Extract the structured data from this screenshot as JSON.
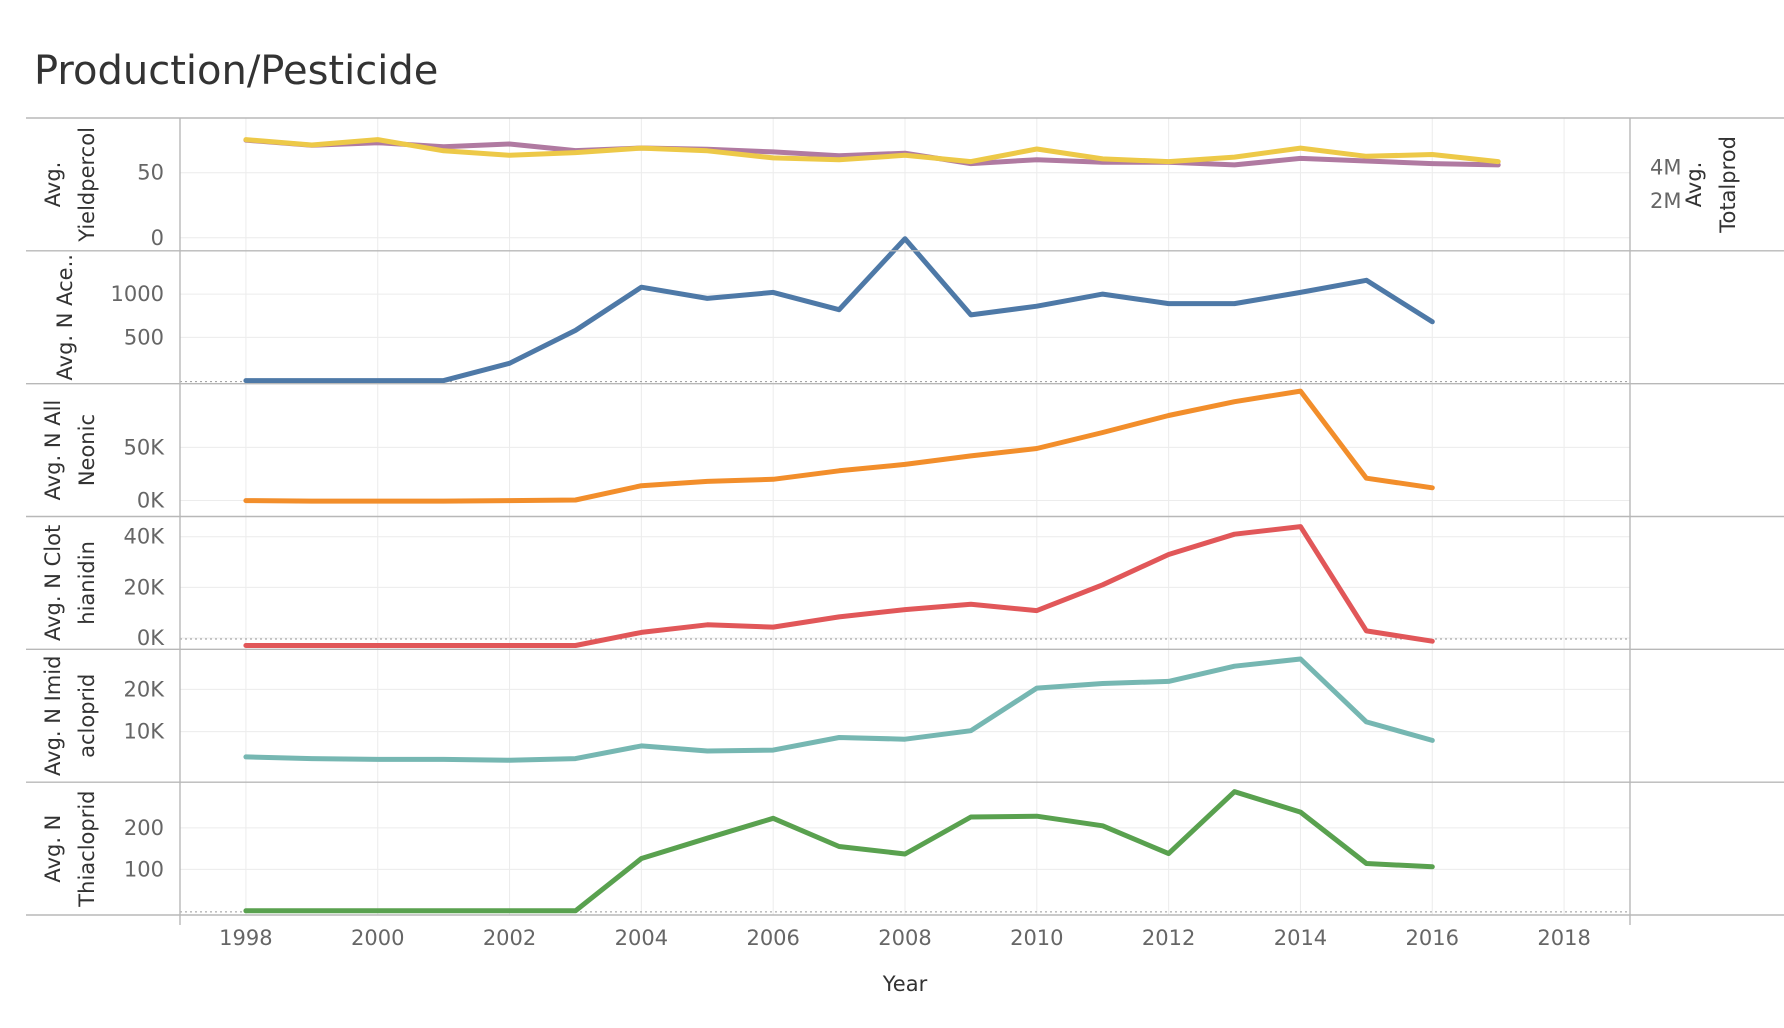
{
  "title": "Production/Pesticide",
  "chart_data": {
    "type": "line",
    "xlabel": "Year",
    "xlim": [
      1997,
      2019
    ],
    "x_ticks": [
      "1998",
      "2000",
      "2002",
      "2004",
      "2006",
      "2008",
      "2010",
      "2012",
      "2014",
      "2016",
      "2018"
    ],
    "panels": [
      {
        "ylabel": [
          "Avg.",
          "Yieldpercol"
        ],
        "ylim": [
          -10,
          92
        ],
        "y_ticks": [
          {
            "v": 0,
            "label": "0"
          },
          {
            "v": 50,
            "label": "50"
          }
        ],
        "right_ylabel": [
          "Avg.",
          "Totalprod"
        ],
        "right_ylim": [
          -1000000,
          6980000
        ],
        "right_ticks": [
          {
            "v": 2000000,
            "label": "2M"
          },
          {
            "v": 4000000,
            "label": "4M"
          }
        ],
        "series": [
          {
            "name": "Avg. Yieldpercol",
            "color": "#b07aa1",
            "axis": "left",
            "x": [
              1998,
              1999,
              2000,
              2001,
              2002,
              2003,
              2004,
              2005,
              2006,
              2007,
              2008,
              2009,
              2010,
              2011,
              2012,
              2013,
              2014,
              2015,
              2016,
              2017
            ],
            "y": [
              75,
              71,
              73,
              70,
              72,
              67,
              69,
              68,
              66,
              63,
              65,
              57,
              60,
              58,
              58,
              56,
              61,
              59,
              57,
              56
            ]
          },
          {
            "name": "Avg. Totalprod",
            "color": "#edc948",
            "axis": "right",
            "x": [
              1998,
              1999,
              2000,
              2001,
              2002,
              2003,
              2004,
              2005,
              2006,
              2007,
              2008,
              2009,
              2010,
              2011,
              2012,
              2013,
              2014,
              2015,
              2016,
              2017
            ],
            "y": [
              5680000,
              5360000,
              5680000,
              5010000,
              4740000,
              4900000,
              5170000,
              5010000,
              4580000,
              4470000,
              4740000,
              4360000,
              5120000,
              4520000,
              4360000,
              4630000,
              5170000,
              4680000,
              4790000,
              4360000
            ]
          }
        ]
      },
      {
        "ylabel": [
          "Avg. N Ace.."
        ],
        "ylim": [
          -35,
          1500
        ],
        "y_ticks": [
          {
            "v": 500,
            "label": "500"
          },
          {
            "v": 1000,
            "label": "1000"
          }
        ],
        "zero_line": true,
        "series": [
          {
            "name": "Avg. N Acetamiprid",
            "color": "#4e79a7",
            "axis": "left",
            "x": [
              1998,
              1999,
              2000,
              2001,
              2002,
              2003,
              2004,
              2005,
              2006,
              2007,
              2008,
              2009,
              2010,
              2011,
              2012,
              2013,
              2014,
              2015,
              2016
            ],
            "y": [
              0,
              0,
              0,
              0,
              200,
              580,
              1080,
              950,
              1020,
              820,
              1640,
              760,
              860,
              1000,
              890,
              890,
              1020,
              1160,
              680
            ]
          }
        ]
      },
      {
        "ylabel": [
          "Avg. N All",
          "Neonic"
        ],
        "ylim": [
          -15000,
          110000
        ],
        "y_ticks": [
          {
            "v": 0,
            "label": "0K"
          },
          {
            "v": 50000,
            "label": "50K"
          }
        ],
        "series": [
          {
            "name": "Avg. N All Neonic",
            "color": "#f28e2b",
            "axis": "left",
            "x": [
              1998,
              1999,
              2000,
              2001,
              2002,
              2003,
              2004,
              2005,
              2006,
              2007,
              2008,
              2009,
              2010,
              2011,
              2012,
              2013,
              2014,
              2015,
              2016
            ],
            "y": [
              0,
              -500,
              -500,
              -500,
              0,
              500,
              14000,
              18000,
              20000,
              28000,
              34000,
              42000,
              49000,
              64000,
              80000,
              93000,
              103000,
              21000,
              12000
            ]
          }
        ]
      },
      {
        "ylabel": [
          "Avg. N Clot",
          "hianidin"
        ],
        "ylim": [
          -4500,
          48000
        ],
        "y_ticks": [
          {
            "v": 0,
            "label": "0K"
          },
          {
            "v": 20000,
            "label": "20K"
          },
          {
            "v": 40000,
            "label": "40K"
          }
        ],
        "zero_line": true,
        "series": [
          {
            "name": "Avg. N Clothianidin",
            "color": "#e15759",
            "axis": "left",
            "x": [
              1998,
              1999,
              2000,
              2001,
              2002,
              2003,
              2004,
              2005,
              2006,
              2007,
              2008,
              2009,
              2010,
              2011,
              2012,
              2013,
              2014,
              2015,
              2016
            ],
            "y": [
              -3000,
              -3000,
              -3000,
              -3000,
              -3000,
              -3000,
              2200,
              5200,
              4300,
              8300,
              11200,
              13300,
              10800,
              21000,
              33000,
              41000,
              44000,
              2800,
              -1300
            ]
          }
        ]
      },
      {
        "ylabel": [
          "Avg. N Imid",
          "acloprid"
        ],
        "ylim": [
          -2000,
          29500
        ],
        "y_ticks": [
          {
            "v": 10000,
            "label": "10K"
          },
          {
            "v": 20000,
            "label": "20K"
          }
        ],
        "series": [
          {
            "name": "Avg. N Imidacloprid",
            "color": "#76b7b2",
            "axis": "left",
            "x": [
              1998,
              1999,
              2000,
              2001,
              2002,
              2003,
              2004,
              2005,
              2006,
              2007,
              2008,
              2009,
              2010,
              2011,
              2012,
              2013,
              2014,
              2015,
              2016
            ],
            "y": [
              4000,
              3600,
              3400,
              3400,
              3200,
              3600,
              6600,
              5400,
              5600,
              8600,
              8200,
              10200,
              20300,
              21400,
              21900,
              25500,
              27200,
              12300,
              7900
            ]
          }
        ]
      },
      {
        "ylabel": [
          "Avg. N",
          "Thiacloprid"
        ],
        "ylim": [
          -10,
          310
        ],
        "y_ticks": [
          {
            "v": 100,
            "label": "100"
          },
          {
            "v": 200,
            "label": "200"
          }
        ],
        "zero_line": true,
        "series": [
          {
            "name": "Avg. N Thiacloprid",
            "color": "#59a14f",
            "axis": "left",
            "x": [
              1998,
              1999,
              2000,
              2001,
              2002,
              2003,
              2004,
              2005,
              2006,
              2007,
              2008,
              2009,
              2010,
              2011,
              2012,
              2013,
              2014,
              2015,
              2016
            ],
            "y": [
              0,
              0,
              0,
              0,
              0,
              0,
              126,
              175,
              223,
              155,
              137,
              226,
              228,
              205,
              138,
              287,
              238,
              114,
              106
            ]
          }
        ]
      }
    ]
  }
}
